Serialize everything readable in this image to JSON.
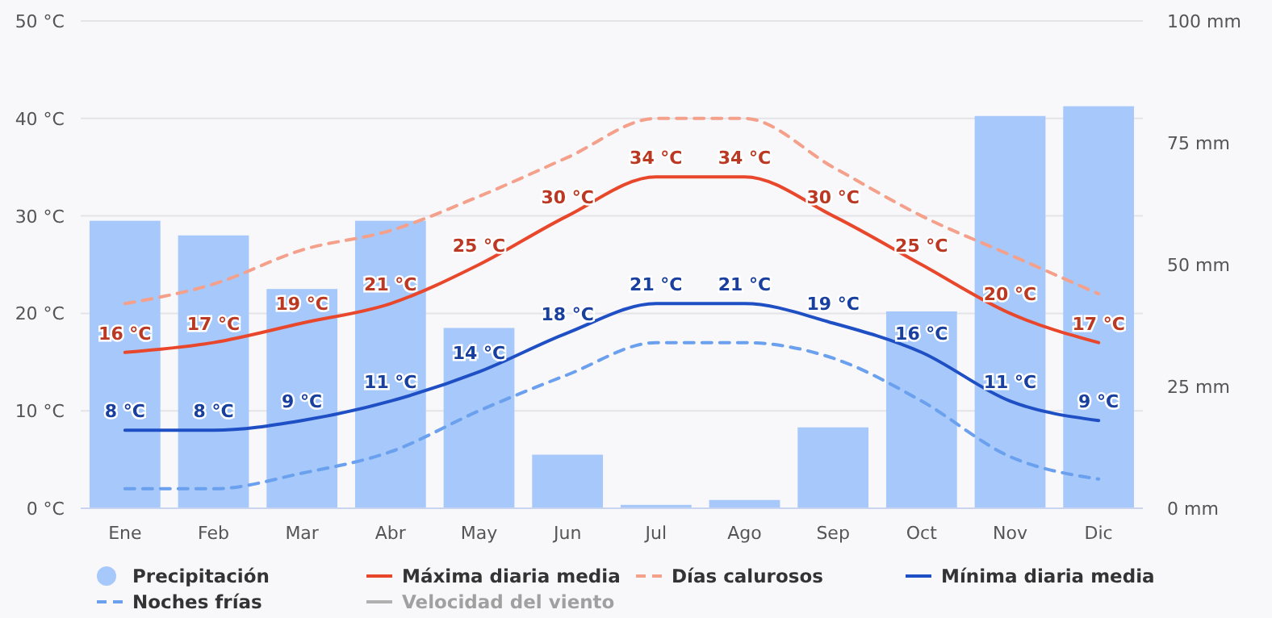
{
  "chart_data": {
    "type": "bar",
    "categories": [
      "Ene",
      "Feb",
      "Mar",
      "Abr",
      "May",
      "Jun",
      "Jul",
      "Ago",
      "Sep",
      "Oct",
      "Nov",
      "Dic"
    ],
    "series": [
      {
        "name": "Precipitación",
        "axis": "y2",
        "color": "#a6c8fa",
        "values": [
          59,
          56,
          45,
          59,
          37,
          11,
          0.7,
          1.7,
          16.6,
          40.4,
          80.5,
          82.5
        ]
      },
      {
        "name": "Máxima diaria media",
        "type": "line",
        "color": "#e8472b",
        "line_style": "solid",
        "values": [
          16,
          17,
          19,
          21,
          25,
          30,
          34,
          34,
          30,
          25,
          20,
          17
        ],
        "value_labels": [
          "16 °C",
          "17 °C",
          "19 °C",
          "21 °C",
          "25 °C",
          "30 °C",
          "34 °C",
          "34 °C",
          "30 °C",
          "25 °C",
          "20 °C",
          "17 °C"
        ]
      },
      {
        "name": "Días calurosos",
        "type": "line",
        "color": "#f4a08a",
        "line_style": "dashed",
        "values": [
          21,
          23,
          26.5,
          28.5,
          32,
          36,
          40,
          40,
          35,
          30,
          26,
          22
        ]
      },
      {
        "name": "Mínima diaria media",
        "type": "line",
        "color": "#1f4fc4",
        "line_style": "solid",
        "values": [
          8,
          8,
          9,
          11,
          14,
          18,
          21,
          21,
          19,
          16,
          11,
          9
        ],
        "value_labels": [
          "8 °C",
          "8 °C",
          "9 °C",
          "11 °C",
          "14 °C",
          "18 °C",
          "21 °C",
          "21 °C",
          "19 °C",
          "16 °C",
          "11 °C",
          "9 °C"
        ]
      },
      {
        "name": "Noches frías",
        "type": "line",
        "color": "#6aa0ee",
        "line_style": "dashed",
        "values": [
          2,
          2,
          3.6,
          5.8,
          10,
          13.7,
          17,
          17,
          15.4,
          11,
          5.3,
          3
        ]
      },
      {
        "name": "Velocidad del viento",
        "type": "line",
        "color": "#b0b0b0",
        "line_style": "solid",
        "values": [
          null,
          null,
          null,
          null,
          null,
          null,
          null,
          null,
          null,
          null,
          null,
          null
        ]
      }
    ],
    "ylim": [
      0,
      50
    ],
    "yticks": [
      {
        "value": 0,
        "label": "0 °C"
      },
      {
        "value": 10,
        "label": "10 °C"
      },
      {
        "value": 20,
        "label": "20 °C"
      },
      {
        "value": 30,
        "label": "30 °C"
      },
      {
        "value": 40,
        "label": "40 °C"
      },
      {
        "value": 50,
        "label": "50 °C"
      }
    ],
    "y2lim": [
      0,
      100
    ],
    "y2ticks": [
      {
        "value": 0,
        "label": "0 mm"
      },
      {
        "value": 25,
        "label": "25 mm"
      },
      {
        "value": 50,
        "label": "50 mm"
      },
      {
        "value": 75,
        "label": "75 mm"
      },
      {
        "value": 100,
        "label": "100 mm"
      }
    ],
    "grid": "y",
    "legend": "bottom",
    "marker": "none"
  }
}
